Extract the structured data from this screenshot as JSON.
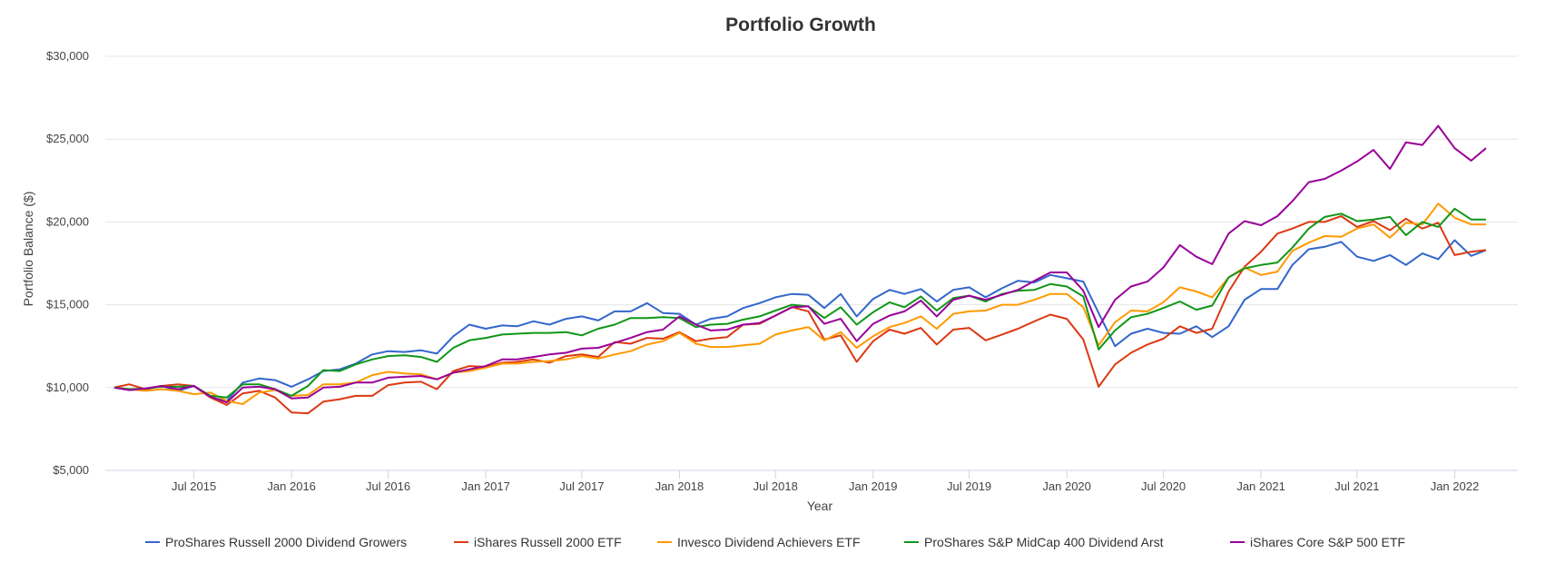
{
  "chart_data": {
    "type": "line",
    "title": "Portfolio Growth",
    "xlabel": "Year",
    "ylabel": "Portfolio Balance ($)",
    "ylim": [
      5000,
      30000
    ],
    "xlim": [
      "2015-01-15",
      "2022-04-30"
    ],
    "yticks": [
      {
        "value": 5000,
        "label": "$5,000"
      },
      {
        "value": 10000,
        "label": "$10,000"
      },
      {
        "value": 15000,
        "label": "$15,000"
      },
      {
        "value": 20000,
        "label": "$20,000"
      },
      {
        "value": 25000,
        "label": "$25,000"
      },
      {
        "value": 30000,
        "label": "$30,000"
      }
    ],
    "xticks": [
      {
        "date": "2015-07-01",
        "label": "Jul 2015"
      },
      {
        "date": "2016-01-01",
        "label": "Jan 2016"
      },
      {
        "date": "2016-07-01",
        "label": "Jul 2016"
      },
      {
        "date": "2017-01-01",
        "label": "Jan 2017"
      },
      {
        "date": "2017-07-01",
        "label": "Jul 2017"
      },
      {
        "date": "2018-01-01",
        "label": "Jan 2018"
      },
      {
        "date": "2018-07-01",
        "label": "Jul 2018"
      },
      {
        "date": "2019-01-01",
        "label": "Jan 2019"
      },
      {
        "date": "2019-07-01",
        "label": "Jul 2019"
      },
      {
        "date": "2020-01-01",
        "label": "Jan 2020"
      },
      {
        "date": "2020-07-01",
        "label": "Jul 2020"
      },
      {
        "date": "2021-01-01",
        "label": "Jan 2021"
      },
      {
        "date": "2021-07-01",
        "label": "Jul 2021"
      },
      {
        "date": "2022-01-01",
        "label": "Jan 2022"
      }
    ],
    "grid": true,
    "legend_position": "bottom",
    "x": [
      "2015-02-01",
      "2015-03-01",
      "2015-04-01",
      "2015-05-01",
      "2015-06-01",
      "2015-07-01",
      "2015-08-01",
      "2015-09-01",
      "2015-10-01",
      "2015-11-01",
      "2015-12-01",
      "2016-01-01",
      "2016-02-01",
      "2016-03-01",
      "2016-04-01",
      "2016-05-01",
      "2016-06-01",
      "2016-07-01",
      "2016-08-01",
      "2016-09-01",
      "2016-10-01",
      "2016-11-01",
      "2016-12-01",
      "2017-01-01",
      "2017-02-01",
      "2017-03-01",
      "2017-04-01",
      "2017-05-01",
      "2017-06-01",
      "2017-07-01",
      "2017-08-01",
      "2017-09-01",
      "2017-10-01",
      "2017-11-01",
      "2017-12-01",
      "2018-01-01",
      "2018-02-01",
      "2018-03-01",
      "2018-04-01",
      "2018-05-01",
      "2018-06-01",
      "2018-07-01",
      "2018-08-01",
      "2018-09-01",
      "2018-10-01",
      "2018-11-01",
      "2018-12-01",
      "2019-01-01",
      "2019-02-01",
      "2019-03-01",
      "2019-04-01",
      "2019-05-01",
      "2019-06-01",
      "2019-07-01",
      "2019-08-01",
      "2019-09-01",
      "2019-10-01",
      "2019-11-01",
      "2019-12-01",
      "2020-01-01",
      "2020-02-01",
      "2020-03-01",
      "2020-04-01",
      "2020-05-01",
      "2020-06-01",
      "2020-07-01",
      "2020-08-01",
      "2020-09-01",
      "2020-10-01",
      "2020-11-01",
      "2020-12-01",
      "2021-01-01",
      "2021-02-01",
      "2021-03-01",
      "2021-04-01",
      "2021-05-01",
      "2021-06-01",
      "2021-07-01",
      "2021-08-01",
      "2021-09-01",
      "2021-10-01",
      "2021-11-01",
      "2021-12-01",
      "2022-01-01",
      "2022-02-01",
      "2022-03-01"
    ],
    "series": [
      {
        "name": "ProShares Russell 2000 Dividend Growers",
        "color": "#3366cc",
        "values": [
          10000,
          9850,
          9900,
          10100,
          9800,
          10100,
          9400,
          9200,
          10300,
          10550,
          10450,
          10050,
          10500,
          11000,
          11100,
          11450,
          12000,
          12200,
          12150,
          12250,
          12050,
          13100,
          13800,
          13550,
          13750,
          13700,
          14000,
          13800,
          14150,
          14300,
          14050,
          14600,
          14600,
          15100,
          14500,
          14450,
          13800,
          14150,
          14300,
          14800,
          15100,
          15450,
          15650,
          15600,
          14800,
          15650,
          14300,
          15350,
          15900,
          15650,
          15950,
          15200,
          15900,
          16050,
          15450,
          16000,
          16450,
          16350,
          16800,
          16600,
          16400,
          14500,
          12500,
          13250,
          13550,
          13300,
          13250,
          13700,
          13050,
          13700,
          15300,
          15950,
          15950,
          17400,
          18350,
          18500,
          18800,
          17900,
          17650,
          18000,
          17400,
          18100,
          17750,
          18900,
          17950,
          18300
        ]
      },
      {
        "name": "iShares Russell 2000 ETF",
        "color": "#dc3912",
        "values": [
          10000,
          10200,
          9900,
          10100,
          10200,
          10100,
          9400,
          8950,
          9650,
          9800,
          9400,
          8500,
          8450,
          9150,
          9300,
          9500,
          9500,
          10150,
          10300,
          10350,
          9900,
          11000,
          11300,
          11250,
          11500,
          11550,
          11700,
          11500,
          11900,
          12000,
          11850,
          12750,
          12650,
          13000,
          12950,
          13350,
          12800,
          12950,
          13050,
          13800,
          13850,
          14350,
          14850,
          14600,
          12900,
          13150,
          11550,
          12800,
          13500,
          13250,
          13600,
          12600,
          13500,
          13600,
          12850,
          13200,
          13550,
          14000,
          14400,
          14150,
          12900,
          10050,
          11400,
          12100,
          12600,
          12950,
          13700,
          13300,
          13550,
          15800,
          17300,
          18200,
          19300,
          19600,
          20000,
          20000,
          20350,
          19700,
          20050,
          19500,
          20200,
          19600,
          19950,
          18000,
          18200,
          18300
        ]
      },
      {
        "name": "Invesco Dividend Achievers ETF",
        "color": "#ff9900",
        "values": [
          10000,
          9900,
          9800,
          9900,
          9800,
          9600,
          9700,
          9200,
          9000,
          9700,
          9850,
          9500,
          9550,
          10200,
          10200,
          10300,
          10750,
          10950,
          10850,
          10800,
          10500,
          10900,
          11000,
          11200,
          11450,
          11450,
          11550,
          11600,
          11700,
          11900,
          11750,
          12000,
          12200,
          12600,
          12800,
          13300,
          12650,
          12450,
          12450,
          12550,
          12650,
          13200,
          13450,
          13650,
          12850,
          13350,
          12400,
          13100,
          13650,
          13900,
          14300,
          13550,
          14450,
          14600,
          14650,
          15000,
          15000,
          15300,
          15650,
          15650,
          14850,
          12550,
          13950,
          14650,
          14600,
          15150,
          16050,
          15800,
          15450,
          16650,
          17250,
          16800,
          17000,
          18250,
          18750,
          19150,
          19100,
          19600,
          19850,
          19050,
          19950,
          19850,
          21100,
          20250,
          19850,
          19850
        ]
      },
      {
        "name": "ProShares S&P MidCap 400 Dividend Arst",
        "color": "#109618",
        "values": [
          10000,
          9900,
          9950,
          10050,
          10050,
          10100,
          9500,
          9400,
          10200,
          10200,
          9900,
          9500,
          10100,
          11050,
          11000,
          11400,
          11700,
          11900,
          11950,
          11850,
          11550,
          12400,
          12850,
          13000,
          13200,
          13250,
          13300,
          13300,
          13350,
          13150,
          13550,
          13800,
          14200,
          14200,
          14250,
          14200,
          13650,
          13800,
          13850,
          14100,
          14300,
          14650,
          15000,
          14900,
          14200,
          14850,
          13800,
          14550,
          15150,
          14850,
          15500,
          14650,
          15400,
          15550,
          15200,
          15650,
          15850,
          15900,
          16250,
          16100,
          15500,
          12300,
          13450,
          14250,
          14450,
          14800,
          15200,
          14700,
          14950,
          16650,
          17200,
          17400,
          17550,
          18450,
          19600,
          20300,
          20500,
          20050,
          20150,
          20300,
          19200,
          20000,
          19700,
          20800,
          20150,
          20150
        ]
      },
      {
        "name": "iShares Core S&P 500 ETF",
        "color": "#990099",
        "values": [
          10000,
          9850,
          9950,
          10100,
          9900,
          10100,
          9450,
          9100,
          10000,
          10050,
          9900,
          9350,
          9400,
          10000,
          10050,
          10300,
          10300,
          10600,
          10650,
          10700,
          10500,
          10900,
          11100,
          11300,
          11700,
          11700,
          11850,
          12000,
          12100,
          12350,
          12400,
          12700,
          13000,
          13350,
          13500,
          14300,
          13800,
          13450,
          13500,
          13800,
          13900,
          14350,
          14850,
          14900,
          13850,
          14150,
          12800,
          13850,
          14350,
          14600,
          15250,
          14300,
          15300,
          15550,
          15300,
          15600,
          15900,
          16450,
          16950,
          16950,
          15850,
          13650,
          15300,
          16100,
          16400,
          17250,
          18600,
          17900,
          17450,
          19300,
          20050,
          19800,
          20350,
          21250,
          22400,
          22600,
          23100,
          23650,
          24350,
          23200,
          24800,
          24650,
          25800,
          24450,
          23700,
          24450
        ]
      }
    ]
  }
}
